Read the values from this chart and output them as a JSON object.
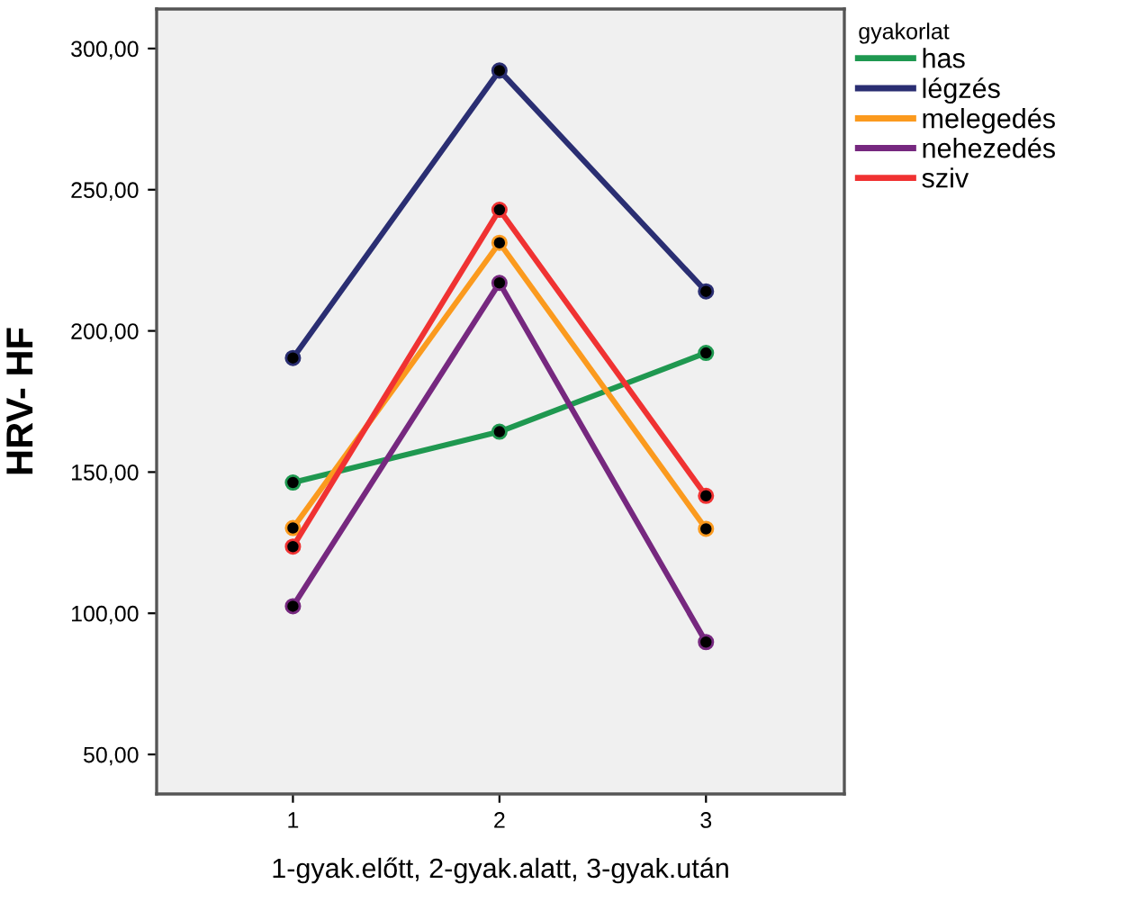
{
  "chart_data": {
    "type": "line",
    "xlabel": "1-gyak.előtt, 2-gyak.alatt, 3-gyak.után",
    "ylabel": "HRV- HF",
    "legend_title": "gyakorlat",
    "x": [
      1,
      2,
      3
    ],
    "series": [
      {
        "name": "has",
        "color": "#1f9850",
        "values": [
          146.3,
          164.3,
          192.2
        ]
      },
      {
        "name": "légzés",
        "color": "#2a2e72",
        "values": [
          190.4,
          292.2,
          214.0
        ]
      },
      {
        "name": "melegedés",
        "color": "#fb9a1e",
        "values": [
          130.2,
          231.2,
          129.9
        ]
      },
      {
        "name": "nehezedés",
        "color": "#76287f",
        "values": [
          102.5,
          217.0,
          89.8
        ]
      },
      {
        "name": "sziv",
        "color": "#f03232",
        "values": [
          123.6,
          242.9,
          141.6
        ]
      }
    ],
    "xlim": [
      0.34,
      3.67
    ],
    "xticks": [
      1,
      2,
      3
    ],
    "ylim": [
      36,
      314
    ],
    "yticks": [
      {
        "value": 50,
        "label": "50,00"
      },
      {
        "value": 100,
        "label": "100,00"
      },
      {
        "value": 150,
        "label": "150,00"
      },
      {
        "value": 200,
        "label": "200,00"
      },
      {
        "value": 250,
        "label": "250,00"
      },
      {
        "value": 300,
        "label": "300,00"
      }
    ],
    "grid": false,
    "legend": "top right",
    "marker": "circle",
    "line_style": "solid"
  }
}
